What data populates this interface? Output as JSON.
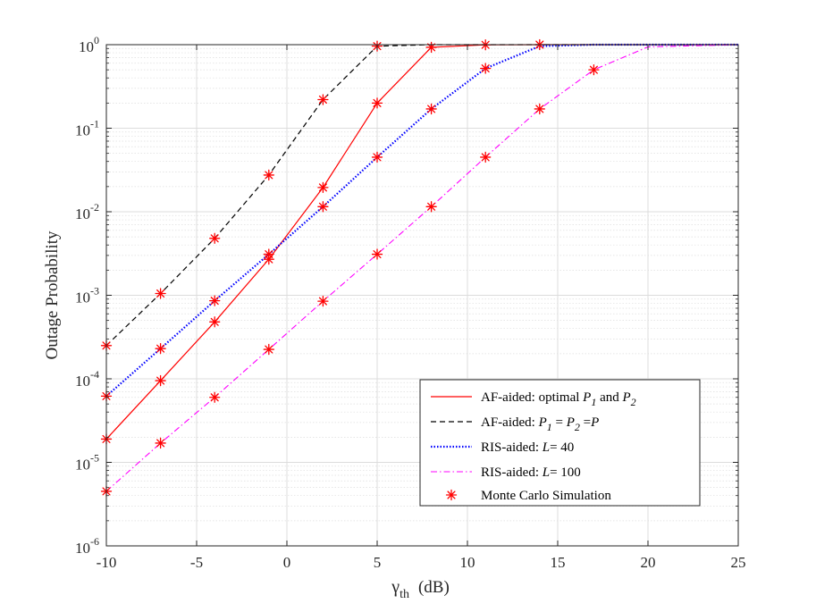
{
  "chart_data": {
    "type": "line",
    "title": "",
    "xlabel": {
      "symbol": "γ",
      "subscript": "th",
      "unit": "(dB)"
    },
    "ylabel": "Outage Probability",
    "xlim": [
      -10,
      25
    ],
    "ylim": [
      1e-06,
      1
    ],
    "yscale": "log",
    "grid": true,
    "xticks": [
      -10,
      -5,
      0,
      5,
      10,
      15,
      20,
      25
    ],
    "xtick_labels": [
      "-10",
      "-5",
      "0",
      "5",
      "10",
      "15",
      "20",
      "25"
    ],
    "yticks": [
      1e-06,
      1e-05,
      0.0001,
      0.001,
      0.01,
      0.1,
      1
    ],
    "ytick_labels": [
      {
        "base": "10",
        "exp": "-6"
      },
      {
        "base": "10",
        "exp": "-5"
      },
      {
        "base": "10",
        "exp": "-4"
      },
      {
        "base": "10",
        "exp": "-3"
      },
      {
        "base": "10",
        "exp": "-2"
      },
      {
        "base": "10",
        "exp": "-1"
      },
      {
        "base": "10",
        "exp": "0"
      }
    ],
    "legend_position": "bottom-right",
    "series": [
      {
        "name": "af-optimal",
        "legend": [
          {
            "t": "AF-aided: optimal "
          },
          {
            "t": "P",
            "i": true
          },
          {
            "t": "1",
            "sub": true,
            "i": true
          },
          {
            "t": "  and "
          },
          {
            "t": "P",
            "i": true
          },
          {
            "t": "2",
            "sub": true,
            "i": true
          }
        ],
        "color": "#ff0000",
        "dash": "",
        "width": 1.2,
        "x": [
          -10,
          -7,
          -4,
          -1,
          2,
          5,
          8,
          11,
          14,
          17,
          20,
          25
        ],
        "y": [
          1.9e-05,
          9.5e-05,
          0.00048,
          0.0027,
          0.0195,
          0.2,
          0.93,
          0.995,
          1.0,
          1.0,
          1.0,
          1.0
        ]
      },
      {
        "name": "af-equal",
        "legend": [
          {
            "t": "AF-aided: "
          },
          {
            "t": "P",
            "i": true
          },
          {
            "t": "1",
            "sub": true,
            "i": true
          },
          {
            "t": " = "
          },
          {
            "t": "P",
            "i": true
          },
          {
            "t": "2",
            "sub": true,
            "i": true
          },
          {
            "t": " ="
          },
          {
            "t": "P",
            "i": true
          }
        ],
        "color": "#000000",
        "dash": "6,4",
        "width": 1.2,
        "x": [
          -10,
          -7,
          -4,
          -1,
          2,
          5,
          8,
          11,
          14,
          17,
          20,
          25
        ],
        "y": [
          0.00025,
          0.00105,
          0.0048,
          0.0275,
          0.22,
          0.96,
          1.0,
          1.0,
          1.0,
          1.0,
          1.0,
          1.0
        ]
      },
      {
        "name": "ris-l40",
        "legend": [
          {
            "t": "RIS-aided: "
          },
          {
            "t": "L",
            "i": true
          },
          {
            "t": "= 40"
          }
        ],
        "color": "#0000ff",
        "dash": "1.5,2",
        "width": 2.2,
        "x": [
          -10,
          -7,
          -4,
          -1,
          2,
          5,
          8,
          11,
          14,
          17,
          20,
          25
        ],
        "y": [
          6.2e-05,
          0.00023,
          0.00086,
          0.0031,
          0.0115,
          0.045,
          0.17,
          0.52,
          0.96,
          1.0,
          1.0,
          1.0
        ]
      },
      {
        "name": "ris-l100",
        "legend": [
          {
            "t": "RIS-aided: "
          },
          {
            "t": "L",
            "i": true
          },
          {
            "t": "= 100"
          }
        ],
        "color": "#ff00ff",
        "dash": "7,3,1.5,3",
        "width": 1.1,
        "x": [
          -10,
          -7,
          -4,
          -1,
          2,
          5,
          8,
          11,
          14,
          17,
          20,
          25
        ],
        "y": [
          4.5e-06,
          1.7e-05,
          6e-05,
          0.000225,
          0.00085,
          0.0031,
          0.0115,
          0.045,
          0.17,
          0.5,
          0.94,
          1.0
        ]
      }
    ],
    "markers": {
      "name": "Monte Carlo Simulation",
      "symbol": "*",
      "color": "#ff0000",
      "points": [
        {
          "x": -10,
          "y": 1.9e-05
        },
        {
          "x": -7,
          "y": 9.5e-05
        },
        {
          "x": -4,
          "y": 0.00048
        },
        {
          "x": -1,
          "y": 0.0027
        },
        {
          "x": 2,
          "y": 0.0195
        },
        {
          "x": 5,
          "y": 0.2
        },
        {
          "x": 8,
          "y": 0.93
        },
        {
          "x": 11,
          "y": 0.995
        },
        {
          "x": 14,
          "y": 1.0
        },
        {
          "x": -10,
          "y": 0.00025
        },
        {
          "x": -7,
          "y": 0.00105
        },
        {
          "x": -4,
          "y": 0.0048
        },
        {
          "x": -1,
          "y": 0.0275
        },
        {
          "x": 2,
          "y": 0.22
        },
        {
          "x": 5,
          "y": 0.96
        },
        {
          "x": -10,
          "y": 6.2e-05
        },
        {
          "x": -7,
          "y": 0.00023
        },
        {
          "x": -4,
          "y": 0.00086
        },
        {
          "x": -1,
          "y": 0.0031
        },
        {
          "x": 2,
          "y": 0.0115
        },
        {
          "x": 5,
          "y": 0.045
        },
        {
          "x": 8,
          "y": 0.17
        },
        {
          "x": 11,
          "y": 0.52
        },
        {
          "x": -10,
          "y": 4.5e-06
        },
        {
          "x": -7,
          "y": 1.7e-05
        },
        {
          "x": -4,
          "y": 6e-05
        },
        {
          "x": -1,
          "y": 0.000225
        },
        {
          "x": 2,
          "y": 0.00085
        },
        {
          "x": 5,
          "y": 0.0031
        },
        {
          "x": 8,
          "y": 0.0115
        },
        {
          "x": 11,
          "y": 0.045
        },
        {
          "x": 14,
          "y": 0.17
        },
        {
          "x": 17,
          "y": 0.5
        }
      ]
    }
  }
}
